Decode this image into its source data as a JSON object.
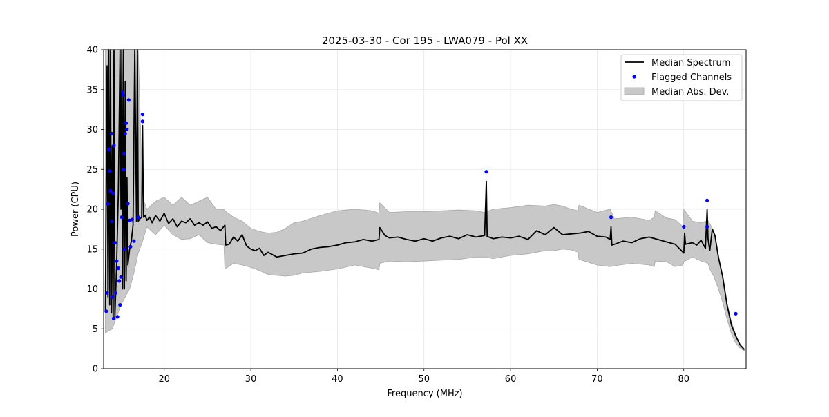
{
  "chart_data": {
    "type": "line",
    "title": "2025-03-30 - Cor 195 - LWA079 - Pol XX",
    "xlabel": "Frequency (MHz)",
    "ylabel": "Power (CPU)",
    "xlim": [
      13.0,
      87.2
    ],
    "ylim": [
      0,
      40
    ],
    "grid": true,
    "legend_position": "top-right",
    "x_ticks": [
      20,
      30,
      40,
      50,
      60,
      70,
      80
    ],
    "y_ticks": [
      0,
      5,
      10,
      15,
      20,
      25,
      30,
      35,
      40
    ],
    "colors": {
      "median": "#000000",
      "flagged": "#0000ff",
      "mad": "#c8c8c8",
      "grid": "#e6e6e6"
    },
    "series": [
      {
        "name": "Median Spectrum",
        "kind": "line",
        "x": [
          13.2,
          13.4,
          13.5,
          13.6,
          13.7,
          13.8,
          13.9,
          14.0,
          14.1,
          14.2,
          14.3,
          14.5,
          14.7,
          14.9,
          15.0,
          15.1,
          15.2,
          15.3,
          15.4,
          15.5,
          15.6,
          15.7,
          15.8,
          16.0,
          16.2,
          16.4,
          16.6,
          16.8,
          16.9,
          17.0,
          17.2,
          17.4,
          17.5,
          17.6,
          17.8,
          18.0,
          18.3,
          18.6,
          19.0,
          19.5,
          20.0,
          20.5,
          21.0,
          21.5,
          22.0,
          22.5,
          23.0,
          23.5,
          24.0,
          24.5,
          25.0,
          25.5,
          26.0,
          26.5,
          27.0,
          27.1,
          27.5,
          28.0,
          28.5,
          29.0,
          29.5,
          30.0,
          30.5,
          31.0,
          31.5,
          32.0,
          33.0,
          34.0,
          35.0,
          36.0,
          37.0,
          38.0,
          39.0,
          40.0,
          41.0,
          42.0,
          43.0,
          44.0,
          44.8,
          44.9,
          45.5,
          46.0,
          47.0,
          48.0,
          49.0,
          50.0,
          51.0,
          52.0,
          53.0,
          54.0,
          55.0,
          56.0,
          57.0,
          57.2,
          57.3,
          57.5,
          58.0,
          59.0,
          60.0,
          61.0,
          62.0,
          63.0,
          64.0,
          65.0,
          66.0,
          67.0,
          68.0,
          69.0,
          70.0,
          71.0,
          71.5,
          71.6,
          71.7,
          72.0,
          73.0,
          74.0,
          75.0,
          76.0,
          77.0,
          78.0,
          79.0,
          80.0,
          80.1,
          80.2,
          81.0,
          81.5,
          82.0,
          82.5,
          82.7,
          82.8,
          83.0,
          83.3,
          83.6,
          84.0,
          84.5,
          85.0,
          85.5,
          86.0,
          86.5,
          87.0
        ],
        "y": [
          7.2,
          38,
          9,
          40,
          8,
          40,
          7,
          28,
          6.5,
          40,
          6.5,
          13,
          22,
          40,
          20,
          40,
          10,
          40,
          10,
          36,
          11,
          24,
          13,
          15,
          16,
          18,
          40,
          18.5,
          40,
          18.5,
          18.8,
          19,
          30.5,
          19,
          19.2,
          18.6,
          19,
          18.3,
          19.2,
          18.5,
          19.5,
          18.2,
          18.8,
          17.8,
          18.5,
          18.3,
          18.8,
          18.0,
          18.3,
          18.0,
          18.4,
          17.6,
          17.8,
          17.3,
          18.0,
          15.5,
          15.6,
          16.5,
          16.0,
          16.8,
          15.4,
          15.0,
          14.8,
          15.1,
          14.2,
          14.6,
          14.0,
          14.2,
          14.4,
          14.5,
          15.0,
          15.2,
          15.3,
          15.5,
          15.8,
          15.9,
          16.2,
          16.0,
          16.2,
          17.7,
          16.7,
          16.4,
          16.5,
          16.2,
          16.0,
          16.3,
          16.0,
          16.4,
          16.6,
          16.3,
          16.8,
          16.5,
          16.7,
          23.5,
          16.6,
          16.5,
          16.3,
          16.5,
          16.4,
          16.6,
          16.2,
          17.3,
          16.8,
          17.7,
          16.8,
          16.9,
          17.0,
          17.2,
          16.6,
          16.5,
          16.2,
          17.8,
          15.5,
          15.6,
          16.0,
          15.8,
          16.3,
          16.5,
          16.2,
          15.9,
          15.6,
          14.5,
          17.0,
          15.6,
          15.8,
          15.5,
          16.1,
          15.1,
          20.0,
          16.3,
          14.8,
          17.5,
          16.7,
          14.0,
          11.5,
          8.0,
          5.5,
          4.1,
          3.0,
          2.4
        ]
      },
      {
        "name": "Flagged Channels",
        "kind": "scatter",
        "x": [
          13.3,
          13.4,
          13.5,
          13.6,
          13.7,
          13.8,
          13.9,
          13.95,
          14.0,
          14.1,
          14.15,
          14.2,
          14.3,
          14.4,
          14.5,
          14.6,
          14.7,
          14.8,
          14.9,
          15.0,
          15.1,
          15.2,
          15.25,
          15.3,
          15.35,
          15.4,
          15.5,
          15.6,
          15.7,
          15.8,
          15.9,
          16.0,
          16.1,
          16.3,
          16.5,
          17.0,
          17.5,
          17.5,
          57.2,
          71.6,
          80.0,
          82.7,
          82.7,
          86.0
        ],
        "y": [
          7.2,
          9.5,
          20.7,
          27.5,
          24.8,
          22.3,
          29.5,
          18.5,
          9.0,
          22.0,
          6.3,
          28.0,
          15.8,
          9.5,
          13.5,
          6.5,
          12.6,
          11.0,
          8.0,
          11.5,
          19.0,
          34.7,
          34.3,
          25.0,
          27.0,
          15.0,
          29.5,
          30.8,
          30.0,
          20.7,
          33.7,
          18.6,
          15.3,
          18.7,
          16.0,
          19.0,
          31.9,
          31.0,
          24.7,
          19.0,
          17.8,
          21.1,
          17.8,
          6.9
        ]
      },
      {
        "name": "Median Abs. Dev.",
        "kind": "band",
        "x": [
          13.2,
          14.0,
          15.0,
          16.0,
          16.5,
          17.0,
          17.5,
          18.0,
          19.0,
          20.0,
          21.0,
          22.0,
          23.0,
          24.0,
          25.0,
          26.0,
          26.9,
          27.0,
          28.0,
          29.0,
          30.0,
          31.0,
          32.0,
          33.0,
          34.0,
          35.0,
          36.0,
          38.0,
          40.0,
          42.0,
          44.0,
          44.8,
          44.9,
          46.0,
          48.0,
          50.0,
          52.0,
          54.0,
          56.0,
          57.0,
          58.0,
          60.0,
          62.0,
          64.0,
          65.0,
          66.0,
          67.0,
          67.8,
          67.9,
          70.0,
          71.5,
          72.0,
          74.0,
          76.0,
          76.6,
          76.7,
          78.0,
          79.0,
          79.9,
          80.0,
          81.0,
          82.0,
          82.8,
          83.0,
          83.5,
          84.0,
          84.5,
          85.0,
          85.5,
          86.0,
          86.5,
          87.0
        ],
        "lower": [
          4.5,
          5.0,
          8.0,
          10.0,
          12.0,
          14.5,
          16.0,
          17.8,
          16.8,
          18.0,
          16.8,
          16.2,
          16.3,
          16.8,
          15.8,
          15.6,
          15.5,
          12.5,
          13.2,
          13.0,
          12.7,
          12.3,
          11.8,
          11.7,
          11.6,
          11.7,
          12.0,
          12.2,
          12.5,
          13.0,
          12.6,
          12.4,
          13.2,
          13.5,
          13.4,
          13.5,
          13.6,
          13.7,
          14.0,
          14.0,
          13.8,
          14.2,
          14.4,
          14.8,
          14.8,
          15.0,
          14.9,
          14.6,
          13.7,
          13.0,
          12.8,
          12.9,
          13.2,
          13.0,
          12.8,
          13.5,
          13.4,
          12.8,
          13.0,
          13.4,
          14.0,
          13.5,
          13.2,
          12.5,
          11.5,
          10.0,
          8.3,
          6.2,
          4.4,
          3.2,
          2.6,
          2.2
        ],
        "upper": [
          40,
          40,
          40,
          40,
          40,
          40,
          21.5,
          20.0,
          21.0,
          21.5,
          20.5,
          21.5,
          20.5,
          21.0,
          21.5,
          20.0,
          20.0,
          19.8,
          19.0,
          18.5,
          17.6,
          17.2,
          17.0,
          17.1,
          17.6,
          18.3,
          18.5,
          19.2,
          19.8,
          20.0,
          19.8,
          19.5,
          20.8,
          19.6,
          19.7,
          19.7,
          19.8,
          19.9,
          19.8,
          19.6,
          20.0,
          20.2,
          20.5,
          20.4,
          20.6,
          20.4,
          20.0,
          19.8,
          20.5,
          19.6,
          20.0,
          18.8,
          19.0,
          18.6,
          19.0,
          19.8,
          18.9,
          18.7,
          17.8,
          20.0,
          18.5,
          18.3,
          18.6,
          18.2,
          17.2,
          14.0,
          11.5,
          8.3,
          5.9,
          4.3,
          3.1,
          2.5
        ]
      }
    ]
  }
}
